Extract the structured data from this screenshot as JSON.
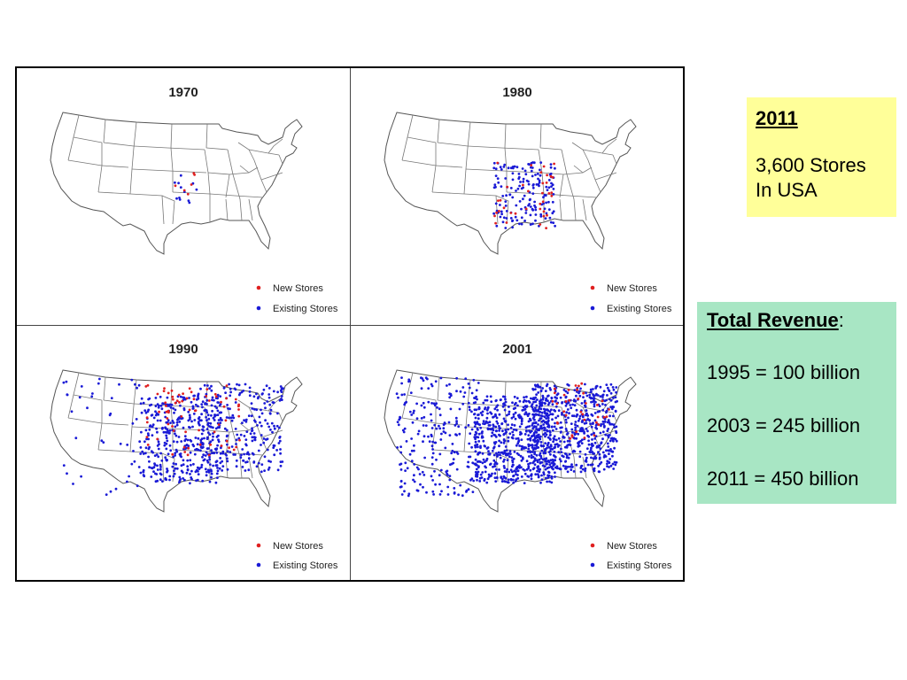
{
  "map_panels": [
    {
      "year": "1970",
      "legend": {
        "new": "New Stores",
        "existing": "Existing Stores"
      },
      "existing_density": 0.03,
      "new_density": 0.01
    },
    {
      "year": "1980",
      "legend": {
        "new": "New Stores",
        "existing": "Existing Stores"
      },
      "existing_density": 0.18,
      "new_density": 0.06
    },
    {
      "year": "1990",
      "legend": {
        "new": "New Stores",
        "existing": "Existing Stores"
      },
      "existing_density": 0.55,
      "new_density": 0.12
    },
    {
      "year": "2001",
      "legend": {
        "new": "New Stores",
        "existing": "Existing Stores"
      },
      "existing_density": 0.9,
      "new_density": 0.04
    }
  ],
  "colors": {
    "new_stores": "#e02020",
    "existing_stores": "#1a1ad6",
    "note_yellow": "#ffff99",
    "note_green": "#a8e6c4"
  },
  "stores_note": {
    "year": "2011",
    "line1": "3,600 Stores",
    "line2": "In USA"
  },
  "revenue_note": {
    "heading": "Total Revenue",
    "colon": ":",
    "lines": [
      "1995 = 100 billion",
      "2003 = 245 billion",
      "2011 = 450 billion"
    ]
  }
}
